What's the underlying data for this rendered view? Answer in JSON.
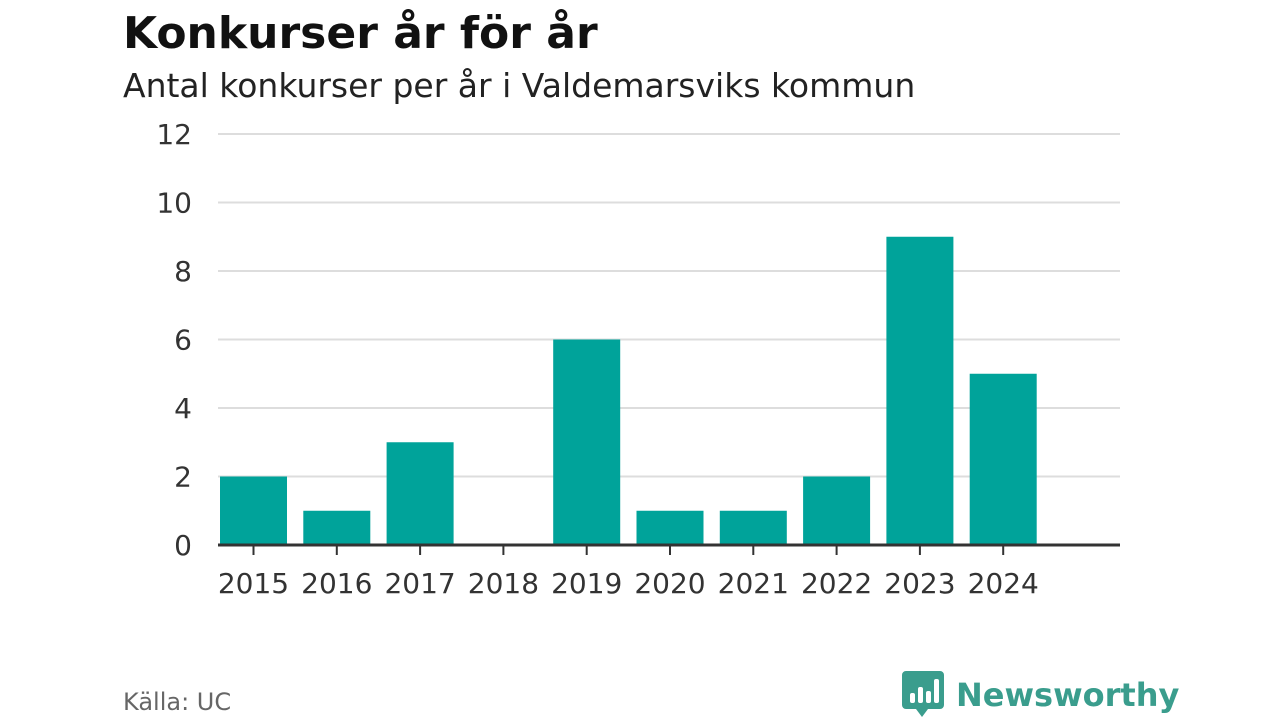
{
  "title": "Konkurser år för år",
  "subtitle": "Antal konkurser per år i Valdemarsviks kommun",
  "source": "Källa: UC",
  "brand": {
    "name": "Newsworthy",
    "icon": "newsworthy-logo-icon",
    "color": "#3a9d8d"
  },
  "chart_data": {
    "type": "bar",
    "categories": [
      "2015",
      "2016",
      "2017",
      "2018",
      "2019",
      "2020",
      "2021",
      "2022",
      "2023",
      "2024"
    ],
    "values": [
      2,
      1,
      3,
      0,
      6,
      1,
      1,
      2,
      9,
      5
    ],
    "yticks": [
      "0",
      "2",
      "4",
      "6",
      "8",
      "10",
      "12"
    ],
    "ylim": [
      0,
      12
    ],
    "grid": true,
    "bar_color": "#00a39a",
    "xlabel": "",
    "ylabel": ""
  }
}
